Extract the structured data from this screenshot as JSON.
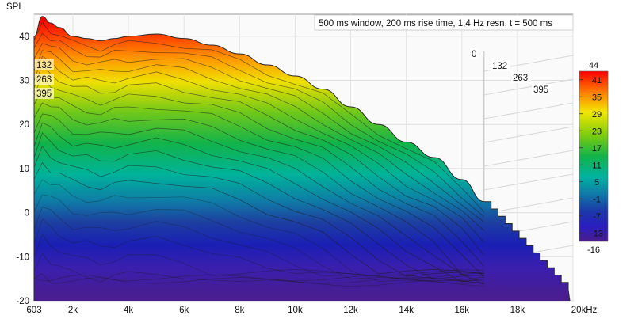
{
  "chart_data": {
    "type": "waterfall",
    "title": "500 ms window, 200 ms rise time,  1,4 Hz resn, t = 500 ms",
    "ylabel": "SPL",
    "xlabel": "",
    "x_unit": "kHz",
    "ylim": [
      -20,
      45
    ],
    "xlim_hz": [
      603,
      20000
    ],
    "y_ticks": [
      40,
      30,
      20,
      10,
      0,
      -10,
      -20
    ],
    "x_ticks": [
      {
        "label": "603",
        "hz": 603
      },
      {
        "label": "2k",
        "hz": 2000
      },
      {
        "label": "4k",
        "hz": 4000
      },
      {
        "label": "6k",
        "hz": 6000
      },
      {
        "label": "8k",
        "hz": 8000
      },
      {
        "label": "10k",
        "hz": 10000
      },
      {
        "label": "12k",
        "hz": 12000
      },
      {
        "label": "14k",
        "hz": 14000
      },
      {
        "label": "16k",
        "hz": 16000
      },
      {
        "label": "18k",
        "hz": 18000
      },
      {
        "label": "20kHz",
        "hz": 20000
      }
    ],
    "time_labels": [
      "0",
      "132",
      "263",
      "395"
    ],
    "time_labels_front": [
      "132",
      "263",
      "395"
    ],
    "front_slice": {
      "hz": [
        603,
        900,
        1200,
        1500,
        2000,
        2500,
        3000,
        3500,
        4000,
        5000,
        6000,
        7000,
        8000,
        9000,
        10000,
        11000,
        12000,
        13000,
        14000,
        15000,
        16000,
        16800
      ],
      "spl": [
        40,
        44.5,
        43,
        42,
        40,
        39.5,
        39,
        39.5,
        40,
        40.5,
        39.5,
        38,
        36,
        33.5,
        31,
        28,
        24,
        20,
        16,
        12.5,
        7.5,
        2.5
      ]
    },
    "floor_db": -16,
    "colorbar": {
      "max_label": "44",
      "min_label": "-16",
      "ticks": [
        41,
        35,
        29,
        23,
        17,
        11,
        5,
        -1,
        -7,
        -13
      ],
      "range": [
        -16,
        44
      ]
    },
    "grid": true
  }
}
